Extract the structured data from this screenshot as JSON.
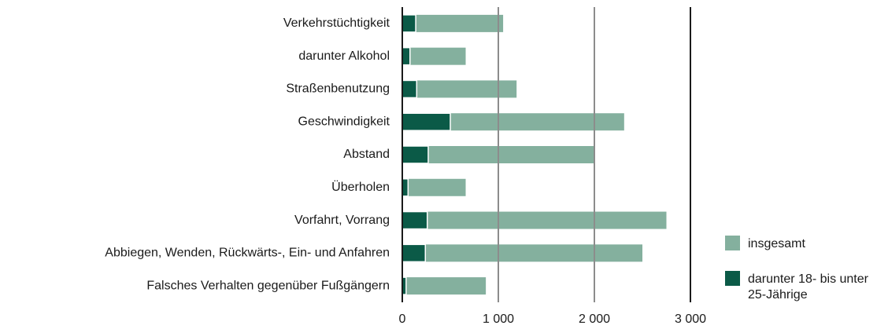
{
  "chart_data": {
    "type": "bar",
    "orientation": "horizontal",
    "overlay": true,
    "categories": [
      "Verkehrstüchtigkeit",
      "darunter Alkohol",
      "Straßenbenutzung",
      "Geschwindigkeit",
      "Abstand",
      "Überholen",
      "Vorfahrt, Vorrang",
      "Abbiegen, Wenden, Rückwärts-, Ein- und Anfahren",
      "Falsches Verhalten gegenüber Fußgängern"
    ],
    "series": [
      {
        "name": "insgesamt",
        "color": "#84b09e",
        "values": [
          1050,
          660,
          1190,
          2310,
          2000,
          660,
          2750,
          2500,
          870
        ]
      },
      {
        "name": "darunter 18- bis unter 25-Jährige",
        "color": "#0b5a47",
        "values": [
          140,
          80,
          150,
          500,
          270,
          60,
          260,
          240,
          40
        ]
      }
    ],
    "xlim": [
      0,
      3000
    ],
    "xticks": [
      0,
      {
        "value": 1000,
        "label": "1 000"
      },
      {
        "value": 2000,
        "label": "2 000"
      },
      {
        "value": 3000,
        "label": "3 000"
      }
    ],
    "grid": true,
    "legend": "lower right"
  }
}
